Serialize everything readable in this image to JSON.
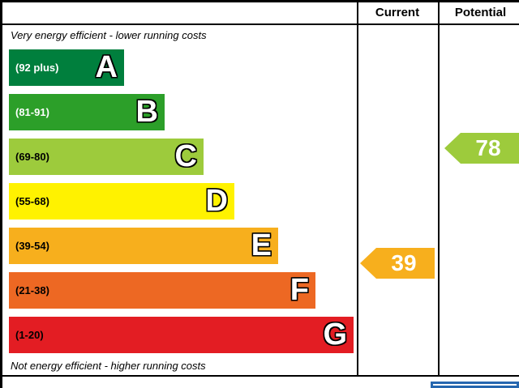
{
  "header": {
    "current": "Current",
    "potential": "Potential"
  },
  "notes": {
    "top": "Very energy efficient - lower running costs",
    "bottom": "Not energy efficient - higher running costs"
  },
  "chart_data": {
    "type": "bar",
    "title": "Energy efficiency rating chart (EPC)",
    "bands": [
      {
        "letter": "A",
        "range": "(92 plus)",
        "min": 92,
        "color": "#007f3d",
        "label_color": "#ffffff"
      },
      {
        "letter": "B",
        "range": "(81-91)",
        "min": 81,
        "max": 91,
        "color": "#2c9f29",
        "label_color": "#ffffff"
      },
      {
        "letter": "C",
        "range": "(69-80)",
        "min": 69,
        "max": 80,
        "color": "#9dcb3c",
        "label_color": "#000000"
      },
      {
        "letter": "D",
        "range": "(55-68)",
        "min": 55,
        "max": 68,
        "color": "#fff200",
        "label_color": "#000000"
      },
      {
        "letter": "E",
        "range": "(39-54)",
        "min": 39,
        "max": 54,
        "color": "#f7af1d",
        "label_color": "#000000"
      },
      {
        "letter": "F",
        "range": "(21-38)",
        "min": 21,
        "max": 38,
        "color": "#ed6823",
        "label_color": "#000000"
      },
      {
        "letter": "G",
        "range": "(1-20)",
        "min": 1,
        "max": 20,
        "color": "#e31d23",
        "label_color": "#000000"
      }
    ],
    "current": {
      "value": "39",
      "band": "E",
      "color": "#f7af1d"
    },
    "potential": {
      "value": "78",
      "band": "C",
      "color": "#9dcb3c"
    }
  }
}
